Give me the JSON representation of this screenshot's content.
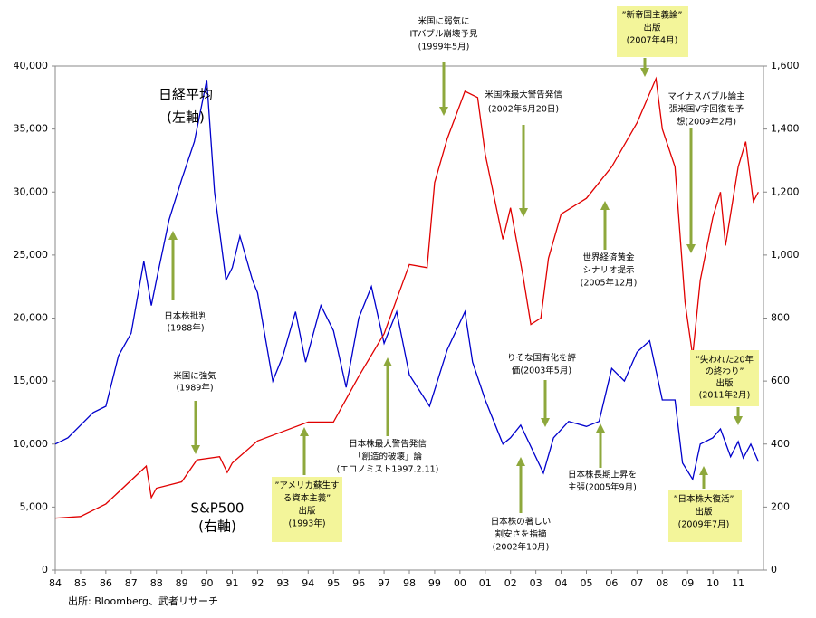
{
  "chart_data": {
    "type": "line",
    "xlim": [
      1984,
      2012
    ],
    "xticks": [
      {
        "value": 1984,
        "label": "84"
      },
      {
        "value": 1985,
        "label": "85"
      },
      {
        "value": 1986,
        "label": "86"
      },
      {
        "value": 1987,
        "label": "87"
      },
      {
        "value": 1988,
        "label": "88"
      },
      {
        "value": 1989,
        "label": "89"
      },
      {
        "value": 1990,
        "label": "90"
      },
      {
        "value": 1991,
        "label": "91"
      },
      {
        "value": 1992,
        "label": "92"
      },
      {
        "value": 1993,
        "label": "93"
      },
      {
        "value": 1994,
        "label": "94"
      },
      {
        "value": 1995,
        "label": "95"
      },
      {
        "value": 1996,
        "label": "96"
      },
      {
        "value": 1997,
        "label": "97"
      },
      {
        "value": 1998,
        "label": "98"
      },
      {
        "value": 1999,
        "label": "99"
      },
      {
        "value": 2000,
        "label": "00"
      },
      {
        "value": 2001,
        "label": "01"
      },
      {
        "value": 2002,
        "label": "02"
      },
      {
        "value": 2003,
        "label": "03"
      },
      {
        "value": 2004,
        "label": "04"
      },
      {
        "value": 2005,
        "label": "05"
      },
      {
        "value": 2006,
        "label": "06"
      },
      {
        "value": 2007,
        "label": "07"
      },
      {
        "value": 2008,
        "label": "08"
      },
      {
        "value": 2009,
        "label": "09"
      },
      {
        "value": 2010,
        "label": "10"
      },
      {
        "value": 2011,
        "label": "11"
      }
    ],
    "ylim": [
      0,
      40000
    ],
    "yticks": [
      0,
      {
        "value": 5000,
        "label": "5,000"
      },
      {
        "value": 10000,
        "label": "10,000"
      },
      {
        "value": 15000,
        "label": "15,000"
      },
      {
        "value": 20000,
        "label": "20,000"
      },
      {
        "value": 25000,
        "label": "25,000"
      },
      {
        "value": 30000,
        "label": "30,000"
      },
      {
        "value": 35000,
        "label": "35,000"
      },
      {
        "value": 40000,
        "label": "40,000"
      }
    ],
    "y2lim": [
      0,
      1600
    ],
    "y2ticks": [
      0,
      200,
      400,
      600,
      800,
      {
        "value": 1000,
        "label": "1,000"
      },
      {
        "value": 1200,
        "label": "1,200"
      },
      {
        "value": 1400,
        "label": "1,400"
      },
      {
        "value": 1600,
        "label": "1,600"
      }
    ],
    "series": [
      {
        "name": "日経平均",
        "axis_note": "(左軸)",
        "color": "#0000cc",
        "x": [
          1984.0,
          1984.5,
          1985.0,
          1985.5,
          1986.0,
          1986.5,
          1987.0,
          1987.5,
          1987.8,
          1988.0,
          1988.5,
          1989.0,
          1989.5,
          1989.99,
          1990.3,
          1990.75,
          1991.0,
          1991.3,
          1991.8,
          1992.0,
          1992.6,
          1993.0,
          1993.5,
          1993.9,
          1994.5,
          1995.0,
          1995.5,
          1996.0,
          1996.5,
          1997.0,
          1997.5,
          1998.0,
          1998.8,
          1999.5,
          2000.2,
          2000.5,
          2001.0,
          2001.7,
          2002.0,
          2002.4,
          2003.3,
          2003.7,
          2004.3,
          2005.0,
          2005.5,
          2006.0,
          2006.5,
          2007.0,
          2007.5,
          2008.0,
          2008.5,
          2008.8,
          2009.2,
          2009.5,
          2010.0,
          2010.3,
          2010.7,
          2011.0,
          2011.2,
          2011.5,
          2011.8
        ],
        "values": [
          10000,
          10500,
          11500,
          12500,
          13000,
          17000,
          18800,
          24500,
          21000,
          23000,
          27800,
          31000,
          34000,
          38900,
          30000,
          23000,
          24000,
          26500,
          23000,
          22000,
          15000,
          17000,
          20500,
          16500,
          21000,
          19000,
          14500,
          20000,
          22500,
          18000,
          20500,
          15500,
          13000,
          17500,
          20500,
          16500,
          13500,
          10000,
          10500,
          11500,
          7700,
          10500,
          11800,
          11400,
          11800,
          16000,
          15000,
          17300,
          18200,
          13500,
          13500,
          8500,
          7200,
          10000,
          10500,
          11200,
          9000,
          10200,
          8900,
          10000,
          8600
        ]
      },
      {
        "name": "S&P500",
        "axis_note": "(右軸)",
        "color": "#e00000",
        "axis": "y2",
        "x": [
          1984.0,
          1985.0,
          1986.0,
          1987.6,
          1987.8,
          1988.0,
          1989.0,
          1989.6,
          1990.5,
          1990.8,
          1991.0,
          1992.0,
          1993.0,
          1994.0,
          1995.0,
          1996.0,
          1997.0,
          1998.0,
          1998.7,
          1999.0,
          1999.5,
          2000.2,
          2000.7,
          2001.0,
          2001.7,
          2002.0,
          2002.5,
          2002.8,
          2003.2,
          2003.5,
          2004.0,
          2005.0,
          2006.0,
          2007.0,
          2007.75,
          2008.0,
          2008.5,
          2008.9,
          2009.2,
          2009.5,
          2010.0,
          2010.3,
          2010.5,
          2011.0,
          2011.3,
          2011.6,
          2011.8
        ],
        "values": [
          165,
          170,
          210,
          330,
          230,
          260,
          280,
          350,
          360,
          310,
          340,
          410,
          440,
          470,
          470,
          615,
          750,
          970,
          960,
          1230,
          1370,
          1520,
          1500,
          1320,
          1050,
          1150,
          930,
          780,
          800,
          990,
          1130,
          1180,
          1280,
          1420,
          1560,
          1400,
          1280,
          850,
          680,
          920,
          1120,
          1200,
          1030,
          1280,
          1360,
          1170,
          1200
        ]
      }
    ],
    "annotations": [
      {
        "lines": [
          "日本株批判",
          "(1988年)"
        ]
      },
      {
        "lines": [
          "米国に強気",
          "(1989年)"
        ]
      },
      {
        "lines": [
          "”アメリカ蘇生す",
          "る資本主義”",
          "出版",
          "(1993年)"
        ]
      },
      {
        "lines": [
          "日本株最大警告発信",
          "「創造的破壊」論",
          "(エコノミスト1997.2.11)"
        ]
      },
      {
        "lines": [
          "米国に弱気に",
          "ITバブル崩壊予見",
          "(1999年5月)"
        ]
      },
      {
        "lines": [
          "米国株最大警告発信",
          "(2002年6月20日)"
        ]
      },
      {
        "lines": [
          "日本株の著しい",
          "割安さを指摘",
          "(2002年10月)"
        ]
      },
      {
        "lines": [
          "りそな国有化を評",
          "価(2003年5月)"
        ]
      },
      {
        "lines": [
          "世界経済黄金",
          "シナリオ提示",
          "(2005年12月)"
        ]
      },
      {
        "lines": [
          "日本株長期上昇を",
          "主張(2005年9月)"
        ]
      },
      {
        "lines": [
          "”新帝国主義論”",
          "出版",
          "(2007年4月)"
        ]
      },
      {
        "lines": [
          "マイナスバブル論主",
          "張米国V字回復を予",
          "想(2009年2月)"
        ]
      },
      {
        "lines": [
          "”失われた20年",
          "の終わり”",
          "出版",
          "(2011年2月)"
        ]
      },
      {
        "lines": [
          "”日本株大復活”",
          "出版",
          "(2009年7月)"
        ]
      }
    ],
    "source": "出所: Bloomberg、武者リサーチ"
  }
}
